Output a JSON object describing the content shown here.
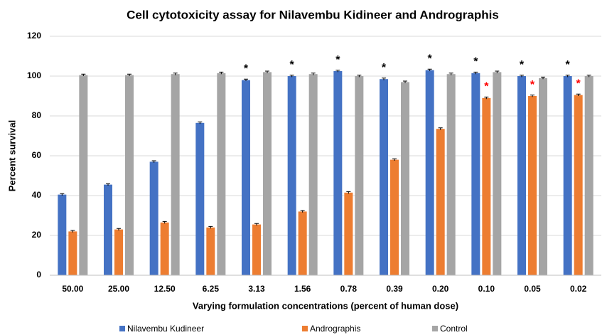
{
  "chart_data": {
    "type": "bar",
    "title": "Cell cytotoxicity assay for Nilavembu Kidineer and Andrographis",
    "x_label": "Varying formulation concentrations (percent of human dose)",
    "y_label": "Percent survival",
    "categories": [
      "50.00",
      "25.00",
      "12.50",
      "6.25",
      "3.13",
      "1.56",
      "0.78",
      "0.39",
      "0.20",
      "0.10",
      "0.05",
      "0.02"
    ],
    "series": [
      {
        "name": "Nilavembu Kudineer",
        "color": "#4472c4",
        "values": [
          40.5,
          45.5,
          57,
          76.5,
          98,
          100,
          102.5,
          98.5,
          103,
          101.5,
          100,
          100
        ],
        "errors": [
          0.5,
          0.5,
          0.5,
          0.5,
          0.5,
          0.5,
          0.5,
          0.5,
          0.5,
          0.5,
          0.5,
          0.5
        ],
        "significance": [
          null,
          null,
          null,
          null,
          "*",
          "*",
          "*",
          "*",
          "*",
          "*",
          "*",
          "*"
        ],
        "significance_color": "#000000"
      },
      {
        "name": "Andrographis",
        "color": "#ed7d31",
        "values": [
          22,
          23,
          26.5,
          24,
          25.5,
          32,
          41.5,
          58,
          73.5,
          89,
          90,
          90.5
        ],
        "errors": [
          0.5,
          0.5,
          0.5,
          0.5,
          0.5,
          0.5,
          0.5,
          0.5,
          0.5,
          0.5,
          0.5,
          0.5
        ],
        "significance": [
          null,
          null,
          null,
          null,
          null,
          null,
          null,
          null,
          null,
          "*",
          "*",
          "*"
        ],
        "significance_color": "#ff0000"
      },
      {
        "name": "Control",
        "color": "#a5a5a5",
        "values": [
          100.5,
          100.5,
          101,
          101.5,
          102,
          101,
          100,
          97,
          101,
          102,
          99,
          100
        ],
        "errors": [
          0.5,
          0.5,
          0.5,
          0.5,
          0.5,
          0.5,
          0.5,
          0.5,
          0.5,
          0.5,
          0.5,
          0.5
        ],
        "significance": [
          null,
          null,
          null,
          null,
          null,
          null,
          null,
          null,
          null,
          null,
          null,
          null
        ],
        "significance_color": "#000000"
      }
    ],
    "ylim": [
      0,
      120
    ],
    "yticks": [
      0,
      20,
      40,
      60,
      80,
      100,
      120
    ],
    "grid": true,
    "legend": "bottom"
  }
}
